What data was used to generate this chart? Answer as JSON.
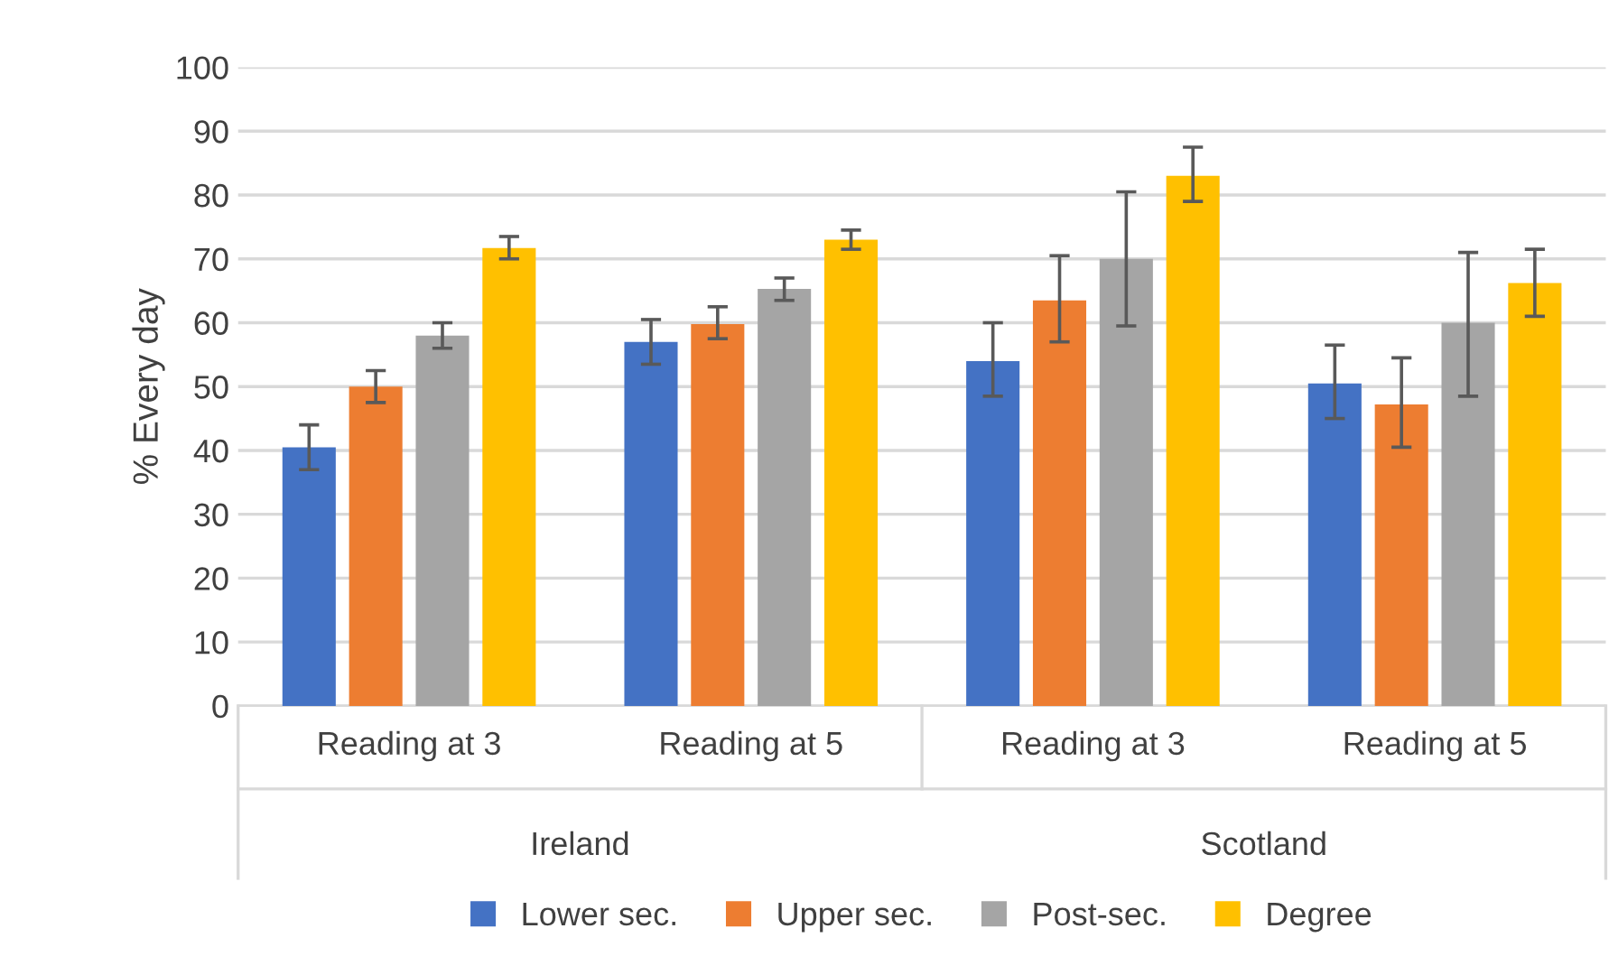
{
  "chart_data": {
    "type": "bar",
    "ylabel": "% Every day",
    "categories": [
      "Reading at 3",
      "Reading at 5",
      "Reading at 3",
      "Reading at 5"
    ],
    "annotations": [
      "Ireland",
      "Scotland"
    ],
    "series": [
      {
        "name": "Lower sec.",
        "color": "#4472c4",
        "values": [
          40.5,
          57,
          54,
          50.5
        ],
        "errors": [
          [
            37,
            44
          ],
          [
            53.5,
            60.5
          ],
          [
            48.5,
            60
          ],
          [
            45,
            56.5
          ]
        ]
      },
      {
        "name": "Upper sec.",
        "color": "#ed7d31",
        "values": [
          50,
          59.8,
          63.5,
          47.2
        ],
        "errors": [
          [
            47.5,
            52.5
          ],
          [
            57.5,
            62.5
          ],
          [
            57,
            70.5
          ],
          [
            40.5,
            54.5
          ]
        ]
      },
      {
        "name": "Post-sec.",
        "color": "#a5a5a5",
        "values": [
          58,
          65.3,
          70,
          60
        ],
        "errors": [
          [
            56,
            60
          ],
          [
            63.5,
            67
          ],
          [
            59.5,
            80.5
          ],
          [
            48.5,
            71
          ]
        ]
      },
      {
        "name": "Degree",
        "color": "#ffc000",
        "values": [
          71.7,
          73,
          83,
          66.2
        ],
        "errors": [
          [
            70,
            73.5
          ],
          [
            71.5,
            74.5
          ],
          [
            79,
            87.5
          ],
          [
            61,
            71.5
          ]
        ]
      }
    ],
    "ylim": [
      0,
      100
    ],
    "yticks": [
      0,
      10,
      20,
      30,
      40,
      50,
      60,
      70,
      80,
      90,
      100
    ],
    "grid": "y",
    "legend": "bottom"
  }
}
